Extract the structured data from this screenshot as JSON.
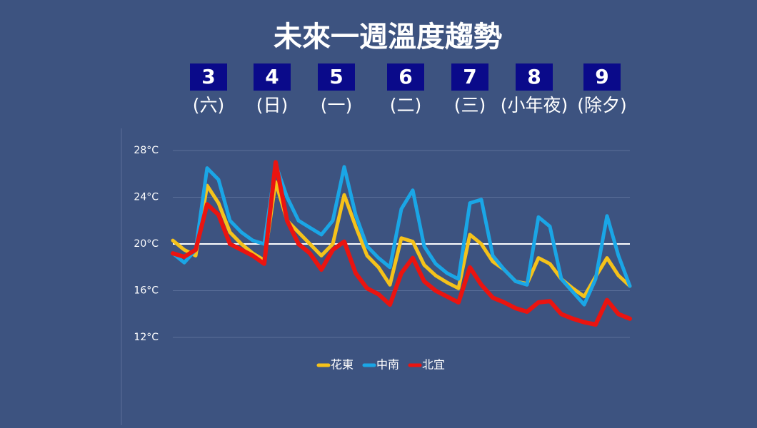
{
  "chart_data": {
    "type": "line",
    "title": "未來一週溫度趨勢",
    "days": [
      {
        "date": "3",
        "weekday": "(六)"
      },
      {
        "date": "4",
        "weekday": "(日)"
      },
      {
        "date": "5",
        "weekday": "(一)"
      },
      {
        "date": "6",
        "weekday": "(二)"
      },
      {
        "date": "7",
        "weekday": "(三)"
      },
      {
        "date": "8",
        "weekday": "(小年夜)"
      },
      {
        "date": "9",
        "weekday": "(除夕)"
      }
    ],
    "categories": [
      null,
      null,
      null,
      null,
      null,
      null,
      null,
      null,
      null,
      null,
      null,
      null,
      null,
      null,
      null,
      null,
      null,
      null,
      null,
      null,
      null,
      null,
      null,
      null,
      null,
      null,
      null,
      null,
      null,
      null,
      null,
      null,
      null,
      null,
      null,
      null,
      null,
      null,
      null,
      null,
      null
    ],
    "ylim": [
      12,
      28
    ],
    "yticks": [
      {
        "value": 12,
        "label": "12°C"
      },
      {
        "value": 16,
        "label": "16°C"
      },
      {
        "value": 20,
        "label": "20°C"
      },
      {
        "value": 24,
        "label": "24°C"
      },
      {
        "value": 28,
        "label": "28°C"
      }
    ],
    "grid": true,
    "reference_line": 20,
    "series": [
      {
        "name": "花東",
        "color": "#f5c21a",
        "values": [
          20.3,
          19.5,
          19,
          25,
          23.5,
          21,
          20,
          19.2,
          18.6,
          25.3,
          22,
          21,
          20,
          19,
          20,
          24.2,
          21.5,
          19,
          18,
          16.5,
          20.5,
          20.2,
          18.2,
          17.3,
          16.7,
          16.2,
          20.8,
          20,
          18.5,
          17.8,
          16.8,
          16.6,
          18.8,
          18.3,
          17,
          16.2,
          15.5,
          17.2,
          18.8,
          17.3,
          16.4
        ]
      },
      {
        "name": "中南",
        "color": "#1aa6e6",
        "values": [
          19.2,
          18.4,
          19.5,
          26.5,
          25.5,
          22,
          21,
          20.3,
          20,
          26.8,
          24,
          22,
          21.4,
          20.8,
          22,
          26.6,
          22.5,
          19.8,
          18.8,
          18,
          23,
          24.6,
          19.8,
          18.3,
          17.5,
          17,
          23.5,
          23.8,
          19,
          17.8,
          16.8,
          16.5,
          22.3,
          21.5,
          17,
          15.9,
          14.8,
          17,
          22.4,
          19,
          16.4
        ]
      },
      {
        "name": "北宜",
        "color": "#ea1410",
        "values": [
          19.2,
          18.9,
          19.5,
          23.4,
          22.5,
          20,
          19.5,
          19,
          18.3,
          27,
          22,
          20,
          19.2,
          17.8,
          19.5,
          20.2,
          17.5,
          16.2,
          15.7,
          14.8,
          17.5,
          18.8,
          16.8,
          16,
          15.5,
          15,
          18,
          16.5,
          15.4,
          15,
          14.5,
          14.2,
          15,
          15.1,
          14,
          13.6,
          13.3,
          13.1,
          15.2,
          14,
          13.6
        ]
      }
    ]
  }
}
